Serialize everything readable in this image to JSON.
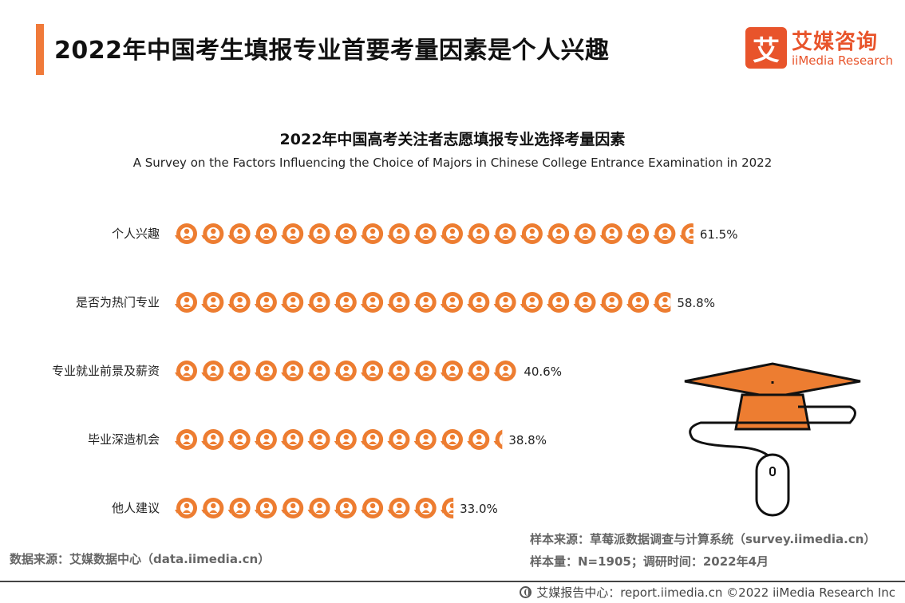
{
  "header": {
    "title": "2022年中国考生填报专业首要考量因素是个人兴趣",
    "accent_color": "#f07a3a"
  },
  "logo": {
    "mark": "艾",
    "name_cn": "艾媒咨询",
    "name_en": "iiMedia Research",
    "color": "#e8542b"
  },
  "chart_data": {
    "type": "bar",
    "orientation": "horizontal",
    "title": "2022年中国高考关注者志愿填报专业选择考量因素",
    "subtitle": "A Survey on the Factors Influencing the Choice of Majors in Chinese College Entrance Examination in 2022",
    "categories": [
      "个人兴趣",
      "是否为热门专业",
      "专业就业前景及薪资",
      "毕业深造机会",
      "他人建议"
    ],
    "values": [
      61.5,
      58.8,
      40.6,
      38.8,
      33.0
    ],
    "value_labels": [
      "61.5%",
      "58.8%",
      "40.6%",
      "38.8%",
      "33.0%"
    ],
    "unit": "%",
    "bar_style": "pictogram",
    "icon": "person-circle-icon",
    "bar_color": "#ed7d31"
  },
  "sources": {
    "left": "数据来源：艾媒数据中心（data.iimedia.cn）",
    "right_line1": "样本来源：草莓派数据调查与计算系统（survey.iimedia.cn）",
    "right_line2": "样本量：N=1905；调研时间：2022年4月"
  },
  "footer": {
    "text": "艾媒报告中心：report.iimedia.cn  ©2022  iiMedia Research  Inc"
  },
  "decoration": {
    "icon": "graduation-cap-mouse-icon",
    "cap_color": "#ed7d31"
  }
}
